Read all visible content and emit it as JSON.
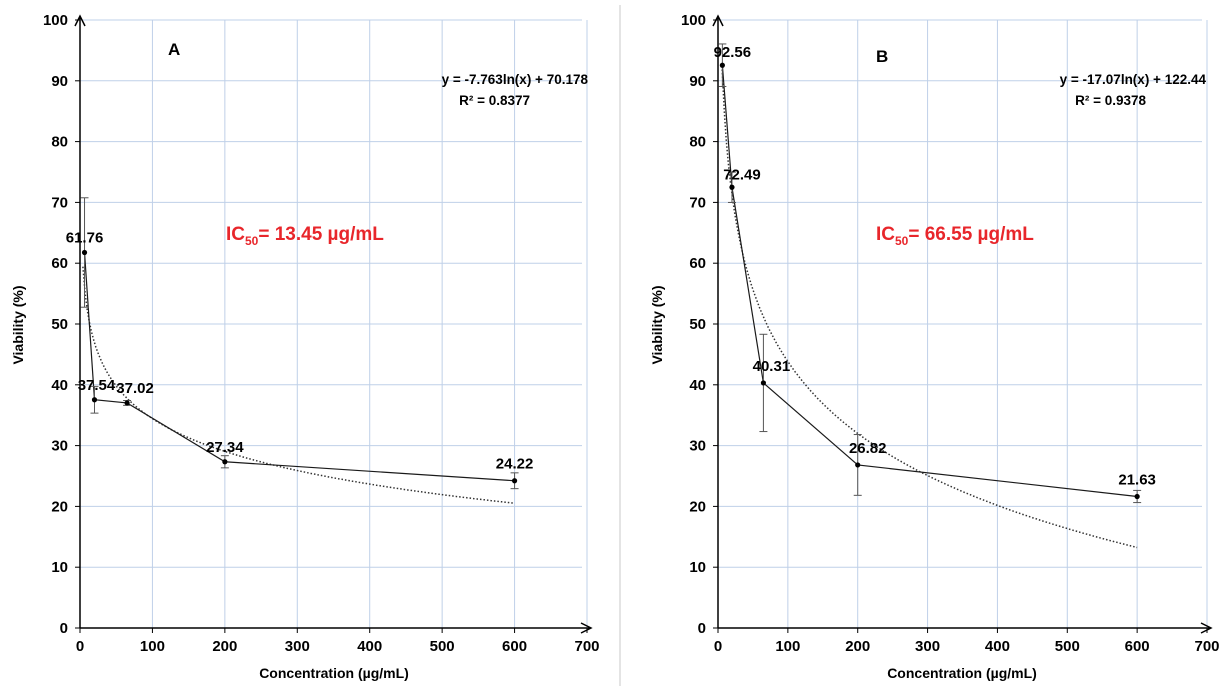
{
  "chart_data": [
    {
      "type": "line",
      "panel_label": "A",
      "xlabel": "Concentration (µg/mL)",
      "ylabel": "Viability (%)",
      "xlim": [
        0,
        700
      ],
      "ylim": [
        0,
        100
      ],
      "x_ticks": [
        0,
        100,
        200,
        300,
        400,
        500,
        600,
        700
      ],
      "y_ticks": [
        0,
        10,
        20,
        30,
        40,
        50,
        60,
        70,
        80,
        90,
        100
      ],
      "grid": true,
      "series": [
        {
          "x": [
            6.25,
            20,
            65,
            200,
            600
          ],
          "y": [
            61.76,
            37.54,
            37.02,
            27.34,
            24.22
          ],
          "error": [
            9,
            2.2,
            0.4,
            1.0,
            1.3
          ],
          "data_labels": [
            "61.76",
            "37.54",
            "37.02",
            "27.34",
            "24.22"
          ]
        }
      ],
      "trendline": {
        "type": "logarithmic",
        "a": -7.763,
        "b": 70.178,
        "x_range": [
          4,
          600
        ],
        "style": "dotted"
      },
      "equation_text": "y = -7.763ln(x) + 70.178",
      "r2_text": "R² = 0.8377",
      "ic50_annotation": {
        "prefix": "IC",
        "subscript": "50",
        "value": "= 13.45 µg/mL",
        "color": "#e8262b"
      }
    },
    {
      "type": "line",
      "panel_label": "B",
      "xlabel": "Concentration (µg/mL)",
      "ylabel": "Viability (%)",
      "xlim": [
        0,
        700
      ],
      "ylim": [
        0,
        100
      ],
      "x_ticks": [
        0,
        100,
        200,
        300,
        400,
        500,
        600,
        700
      ],
      "y_ticks": [
        0,
        10,
        20,
        30,
        40,
        50,
        60,
        70,
        80,
        90,
        100
      ],
      "grid": true,
      "series": [
        {
          "x": [
            6.25,
            20,
            65,
            200,
            600
          ],
          "y": [
            92.56,
            72.49,
            40.31,
            26.82,
            21.63
          ],
          "error": [
            3.5,
            2.5,
            8.0,
            5.0,
            1.0
          ],
          "data_labels": [
            "92.56",
            "72.49",
            "40.31",
            "26.82",
            "21.63"
          ]
        }
      ],
      "trendline": {
        "type": "logarithmic",
        "a": -17.07,
        "b": 122.44,
        "x_range": [
          6,
          600
        ],
        "style": "dotted"
      },
      "equation_text": "y = -17.07ln(x) + 122.44",
      "r2_text": "R² = 0.9378",
      "ic50_annotation": {
        "prefix": "IC",
        "subscript": "50",
        "value": "= 66.55 µg/mL",
        "color": "#e8262b"
      }
    }
  ]
}
